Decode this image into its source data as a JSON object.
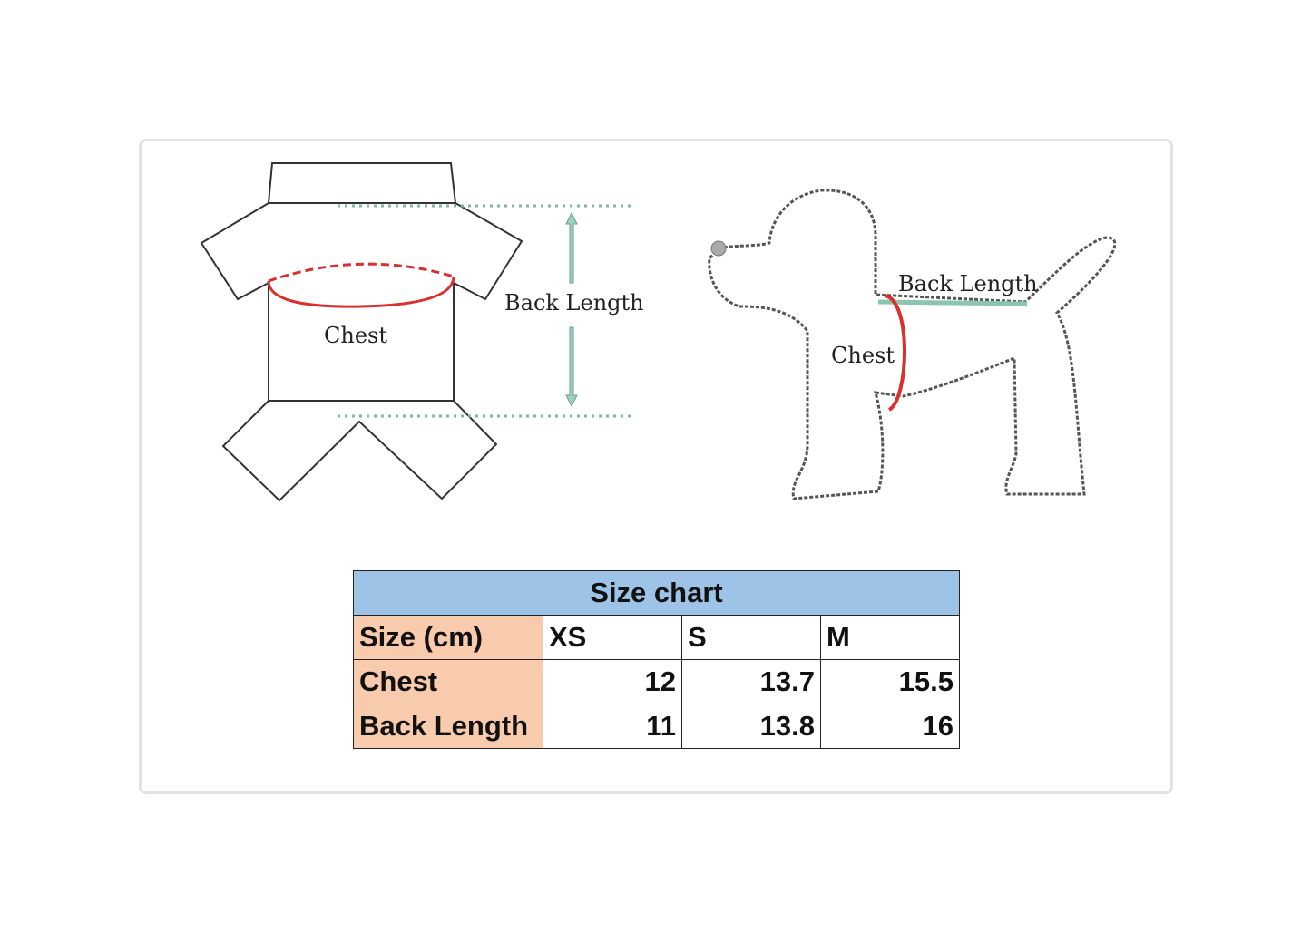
{
  "garment_diagram": {
    "chest_label": "Chest",
    "back_length_label": "Back Length"
  },
  "dog_diagram": {
    "chest_label": "Chest",
    "back_length_label": "Back Length"
  },
  "colors": {
    "table_header": "#9dc3e6",
    "row_header": "#f8cbad",
    "chest_line": "#d9302f",
    "back_length_line": "#8cc5ad"
  },
  "size_chart": {
    "title": "Size chart",
    "header_label": "Size (cm)",
    "sizes": [
      "XS",
      "S",
      "M"
    ],
    "rows": [
      {
        "label": "Chest",
        "values": [
          "12",
          "13.7",
          "15.5"
        ]
      },
      {
        "label": "Back Length",
        "values": [
          "11",
          "13.8",
          "16"
        ]
      }
    ]
  }
}
